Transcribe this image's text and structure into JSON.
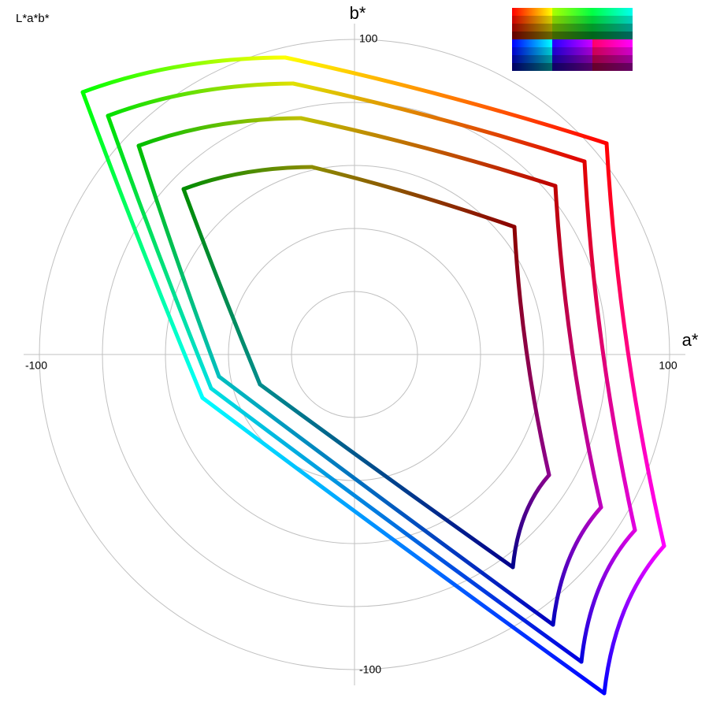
{
  "header": {
    "title": "L*a*b*"
  },
  "axes": {
    "y_label": "b*",
    "x_label": "a*",
    "x_ticks": {
      "min": "-100",
      "max": "100"
    },
    "y_ticks": {
      "min": "-100",
      "max": "100"
    }
  }
}
